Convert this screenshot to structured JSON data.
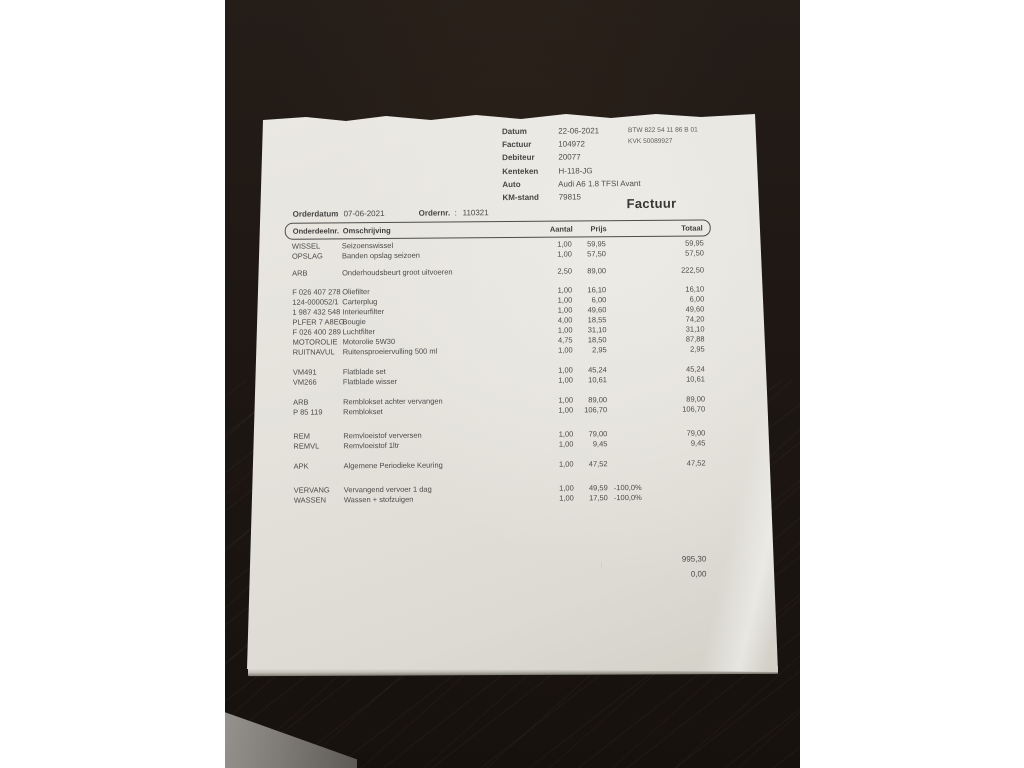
{
  "header": {
    "fields": [
      {
        "label": "Datum",
        "value": "22-06-2021"
      },
      {
        "label": "Factuur",
        "value": "104972"
      },
      {
        "label": "Debiteur",
        "value": "20077"
      },
      {
        "label": "Kenteken",
        "value": "H-118-JG"
      },
      {
        "label": "Auto",
        "value": "Audi A6 1.8 TFSI Avant"
      },
      {
        "label": "KM-stand",
        "value": "79815"
      }
    ],
    "btw": "BTW 822 54 11 86 B 01",
    "kvk": "KVK 50089927",
    "title": "Factuur"
  },
  "order": {
    "date_label": "Orderdatum",
    "sep1": ":",
    "date": "07-06-2021",
    "nr_label": "Ordernr.",
    "sep2": ":",
    "nr": "110321"
  },
  "table": {
    "columns": [
      "Onderdeelnr.",
      "Omschrijving",
      "Aantal",
      "Prijs",
      "Totaal"
    ],
    "rows": [
      {
        "code": "WISSEL",
        "desc": "Seizoenswissel",
        "qty": "1,00",
        "price": "59,95",
        "disc": "",
        "total": "59,95",
        "gap": 0
      },
      {
        "code": "OPSLAG",
        "desc": "Banden opslag seizoen",
        "qty": "1,00",
        "price": "57,50",
        "disc": "",
        "total": "57,50",
        "gap": 0
      },
      {
        "code": "ARB",
        "desc": "Onderhoudsbeurt groot uitvoeren",
        "qty": "2,50",
        "price": "89,00",
        "disc": "",
        "total": "222,50",
        "gap": 7
      },
      {
        "code": "F 026 407 278",
        "desc": "Oliefilter",
        "qty": "1,00",
        "price": "16,10",
        "disc": "",
        "total": "16,10",
        "gap": 9
      },
      {
        "code": "124-000052/1",
        "desc": "Carterplug",
        "qty": "1,00",
        "price": "6,00",
        "disc": "",
        "total": "6,00",
        "gap": 0
      },
      {
        "code": "1 987 432 548",
        "desc": "Interieurfilter",
        "qty": "1,00",
        "price": "49,60",
        "disc": "",
        "total": "49,60",
        "gap": 0
      },
      {
        "code": "PLFER 7 A8EG",
        "desc": "Bougie",
        "qty": "4,00",
        "price": "18,55",
        "disc": "",
        "total": "74,20",
        "gap": 0
      },
      {
        "code": "F 026 400 289",
        "desc": "Luchtfilter",
        "qty": "1,00",
        "price": "31,10",
        "disc": "",
        "total": "31,10",
        "gap": 0
      },
      {
        "code": "MOTOROLIE",
        "desc": "Motorolie 5W30",
        "qty": "4,75",
        "price": "18,50",
        "disc": "",
        "total": "87,88",
        "gap": 0
      },
      {
        "code": "RUITNAVUL",
        "desc": "Ruitensproeiervulling 500 ml",
        "qty": "1,00",
        "price": "2,95",
        "disc": "",
        "total": "2,95",
        "gap": 0
      },
      {
        "code": "VM491",
        "desc": "Flatblade set",
        "qty": "1,00",
        "price": "45,24",
        "disc": "",
        "total": "45,24",
        "gap": 10
      },
      {
        "code": "VM266",
        "desc": "Flatblade wisser",
        "qty": "1,00",
        "price": "10,61",
        "disc": "",
        "total": "10,61",
        "gap": 0
      },
      {
        "code": "ARB",
        "desc": "Remblokset achter vervangen",
        "qty": "1,00",
        "price": "89,00",
        "disc": "",
        "total": "89,00",
        "gap": 10
      },
      {
        "code": "P 85 119",
        "desc": "Remblokset",
        "qty": "1,00",
        "price": "106,70",
        "disc": "",
        "total": "106,70",
        "gap": 0
      },
      {
        "code": "REM",
        "desc": "Remvloeistof verversen",
        "qty": "1,00",
        "price": "79,00",
        "disc": "",
        "total": "79,00",
        "gap": 14
      },
      {
        "code": "REMVL",
        "desc": "Remvloeistof 1ltr",
        "qty": "1,00",
        "price": "9,45",
        "disc": "",
        "total": "9,45",
        "gap": 0
      },
      {
        "code": "APK",
        "desc": "Algemene Periodieke Keuring",
        "qty": "1,00",
        "price": "47,52",
        "disc": "",
        "total": "47,52",
        "gap": 10
      },
      {
        "code": "VERVANG",
        "desc": "Vervangend vervoer 1 dag",
        "qty": "1,00",
        "price": "49,59",
        "disc": "-100,0%",
        "total": "",
        "gap": 14
      },
      {
        "code": "WASSEN",
        "desc": "Wassen + stofzuigen",
        "qty": "1,00",
        "price": "17,50",
        "disc": "-100,0%",
        "total": "",
        "gap": 0
      }
    ]
  },
  "totals": {
    "subtotal": "995,30",
    "colon": ":",
    "total": "0,00"
  }
}
